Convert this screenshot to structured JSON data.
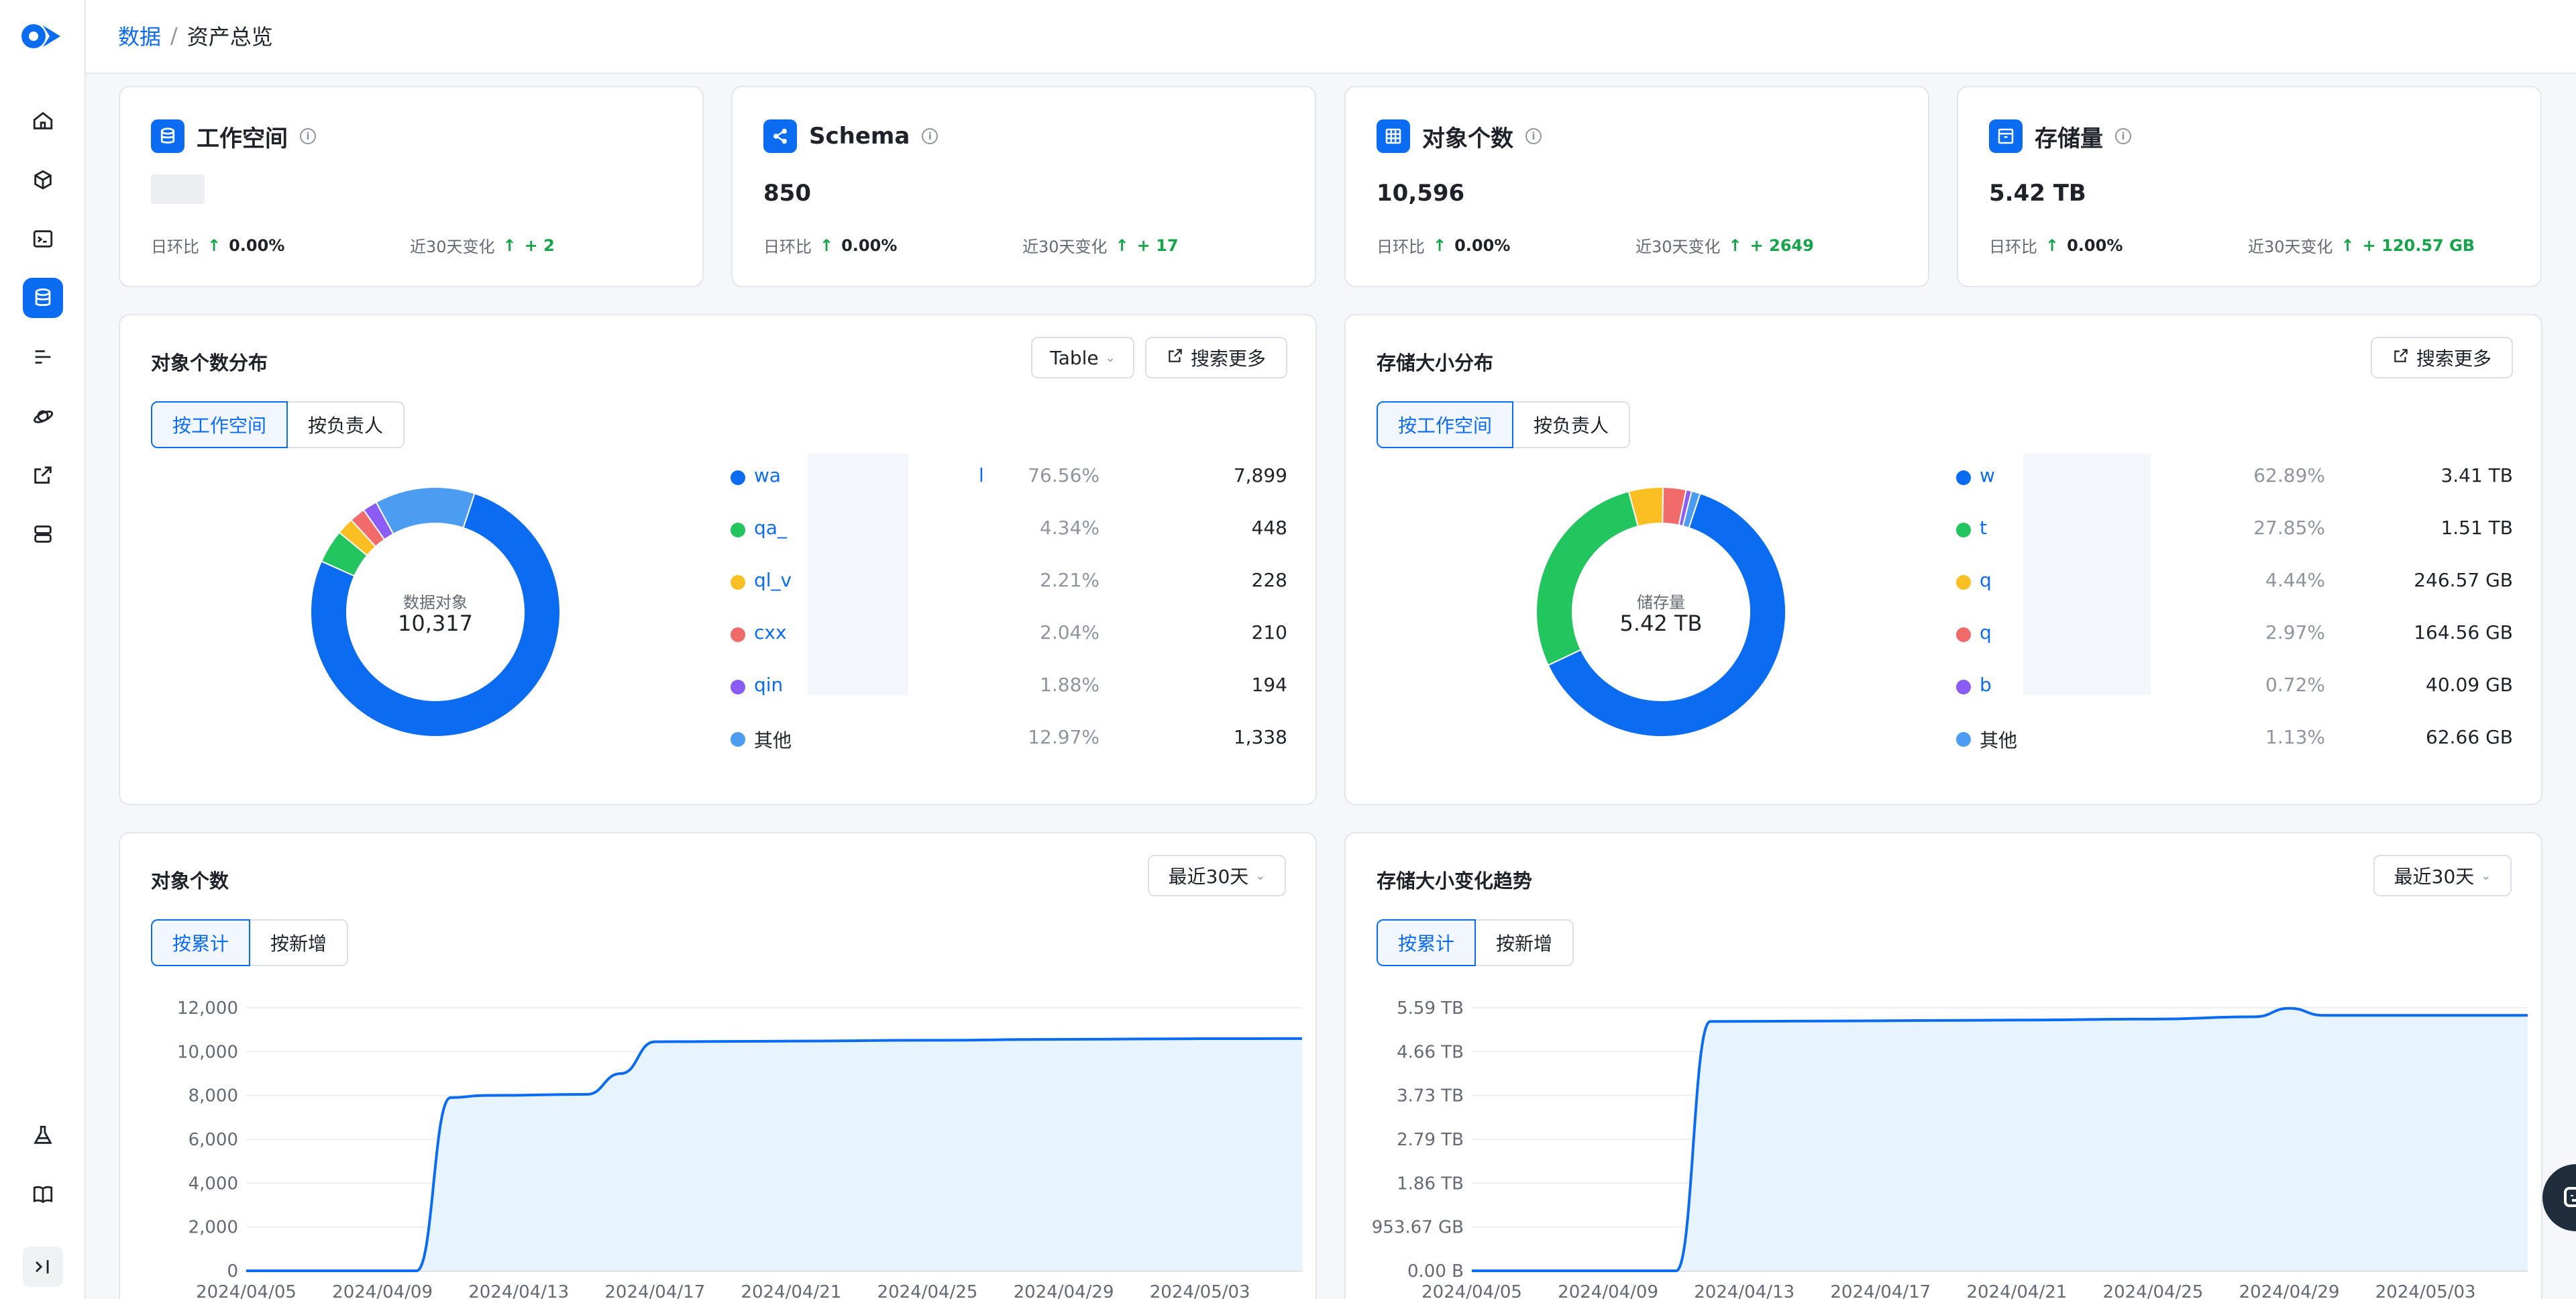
{
  "breadcrumb": {
    "root": "数据",
    "sep": "/",
    "current": "资产总览"
  },
  "metrics": [
    {
      "title": "工作空间",
      "value": "",
      "dod_label": "日环比",
      "dod_value": "0.00%",
      "d30_label": "近30天变化",
      "d30_value": "+ 2"
    },
    {
      "title": "Schema",
      "value": "850",
      "dod_label": "日环比",
      "dod_value": "0.00%",
      "d30_label": "近30天变化",
      "d30_value": "+ 17"
    },
    {
      "title": "对象个数",
      "value": "10,596",
      "dod_label": "日环比",
      "dod_value": "0.00%",
      "d30_label": "近30天变化",
      "d30_value": "+ 2649"
    },
    {
      "title": "存储量",
      "value": "5.42 TB",
      "dod_label": "日环比",
      "dod_value": "0.00%",
      "d30_label": "近30天变化",
      "d30_value": "+ 120.57 GB"
    }
  ],
  "obj_dist": {
    "title": "对象个数分布",
    "type_select": "Table",
    "more_label": "搜索更多",
    "seg": [
      "按工作空间",
      "按负责人"
    ],
    "center_label": "数据对象",
    "center_value": "10,317",
    "rows": [
      {
        "name": "wa",
        "tail": "l",
        "pct": "76.56%",
        "value": "7,899"
      },
      {
        "name": "qa_",
        "tail": "",
        "pct": "4.34%",
        "value": "448"
      },
      {
        "name": "ql_v",
        "tail": "",
        "pct": "2.21%",
        "value": "228"
      },
      {
        "name": "cxx",
        "tail": "",
        "pct": "2.04%",
        "value": "210"
      },
      {
        "name": "qin",
        "tail": "",
        "pct": "1.88%",
        "value": "194"
      },
      {
        "name": "其他",
        "tail": "",
        "pct": "12.97%",
        "value": "1,338"
      }
    ]
  },
  "store_dist": {
    "title": "存储大小分布",
    "more_label": "搜索更多",
    "seg": [
      "按工作空间",
      "按负责人"
    ],
    "center_label": "储存量",
    "center_value": "5.42 TB",
    "rows": [
      {
        "name": "w",
        "pct": "62.89%",
        "value": "3.41 TB"
      },
      {
        "name": "t",
        "pct": "27.85%",
        "value": "1.51 TB"
      },
      {
        "name": "q",
        "pct": "4.44%",
        "value": "246.57 GB"
      },
      {
        "name": "q",
        "pct": "2.97%",
        "value": "164.56 GB"
      },
      {
        "name": "b",
        "pct": "0.72%",
        "value": "40.09 GB"
      },
      {
        "name": "其他",
        "pct": "1.13%",
        "value": "62.66 GB"
      }
    ]
  },
  "obj_trend": {
    "title": "对象个数",
    "range": "最近30天",
    "seg": [
      "按累计",
      "按新增"
    ]
  },
  "store_trend": {
    "title": "存储大小变化趋势",
    "range": "最近30天",
    "seg": [
      "按累计",
      "按新增"
    ]
  },
  "colors": {
    "accent": "#0b6cf2",
    "green": "#22c55e",
    "orange": "#fbbf24",
    "red": "#f26b6b",
    "purple": "#8b5cf6",
    "lightblue": "#4c9cf2",
    "area": "#e8f4fd"
  },
  "chart_data": [
    {
      "type": "pie",
      "title": "对象个数分布",
      "labels": [
        "wa",
        "qa_",
        "ql_v",
        "cxx",
        "qin",
        "其他"
      ],
      "values": [
        7899,
        448,
        228,
        210,
        194,
        1338
      ]
    },
    {
      "type": "pie",
      "title": "存储大小分布",
      "labels": [
        "w",
        "t",
        "q",
        "q",
        "b",
        "其他"
      ],
      "values": [
        62.89,
        27.85,
        4.44,
        2.97,
        0.72,
        1.13
      ]
    },
    {
      "type": "area",
      "title": "对象个数",
      "x_ticks": [
        "2024/04/05",
        "2024/04/09",
        "2024/04/13",
        "2024/04/17",
        "2024/04/21",
        "2024/04/25",
        "2024/04/29",
        "2024/05/03"
      ],
      "y_ticks": [
        "0",
        "2,000",
        "4,000",
        "6,000",
        "8,000",
        "10,000",
        "12,000"
      ],
      "ylim": [
        0,
        12000
      ],
      "x": [
        "2024/04/05",
        "2024/04/09",
        "2024/04/10",
        "2024/04/11",
        "2024/04/12",
        "2024/04/15",
        "2024/04/16",
        "2024/04/17",
        "2024/04/21",
        "2024/04/25",
        "2024/04/29",
        "2024/05/03",
        "2024/05/06"
      ],
      "y": [
        0,
        0,
        0,
        7900,
        8000,
        8050,
        9000,
        10450,
        10480,
        10520,
        10560,
        10590,
        10596
      ]
    },
    {
      "type": "area",
      "title": "存储大小变化趋势",
      "x_ticks": [
        "2024/04/05",
        "2024/04/09",
        "2024/04/13",
        "2024/04/17",
        "2024/04/21",
        "2024/04/25",
        "2024/04/29",
        "2024/05/03"
      ],
      "y_ticks": [
        "0.00 B",
        "953.67 GB",
        "1.86 TB",
        "2.79 TB",
        "3.73 TB",
        "4.66 TB",
        "5.59 TB"
      ],
      "ylim": [
        0,
        5.59
      ],
      "x": [
        "2024/04/05",
        "2024/04/09",
        "2024/04/11",
        "2024/04/12",
        "2024/04/16",
        "2024/04/21",
        "2024/04/25",
        "2024/04/28",
        "2024/04/29",
        "2024/04/30",
        "2024/05/03",
        "2024/05/06"
      ],
      "y": [
        0,
        0,
        0,
        5.3,
        5.31,
        5.33,
        5.35,
        5.4,
        5.58,
        5.43,
        5.43,
        5.43
      ]
    }
  ]
}
